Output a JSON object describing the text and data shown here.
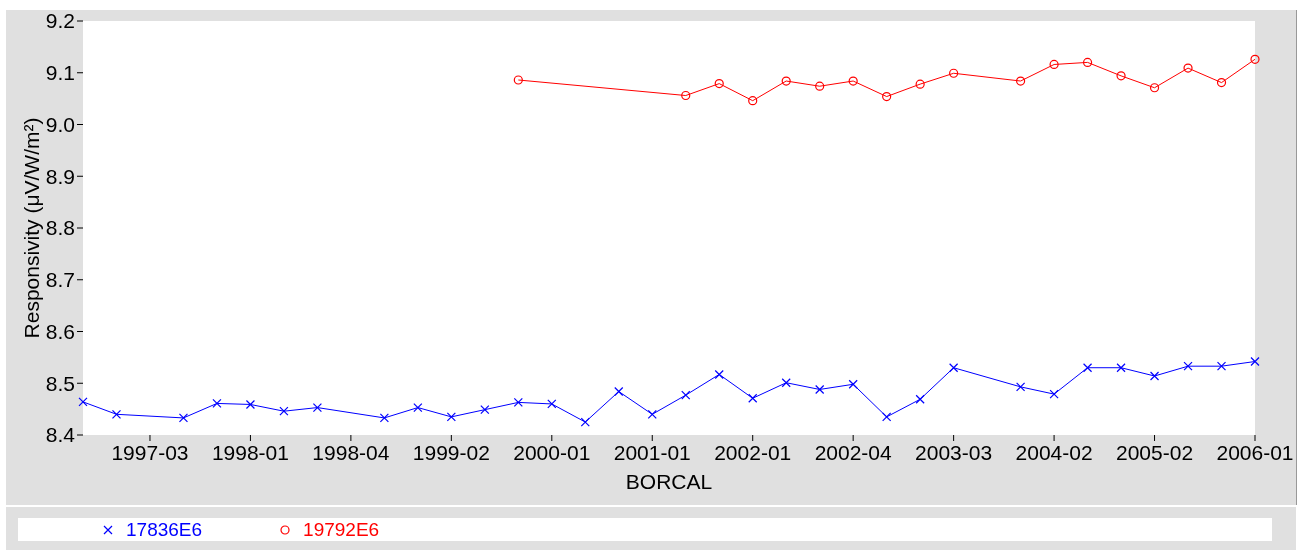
{
  "chart_data": {
    "type": "line",
    "xlabel": "BORCAL",
    "ylabel": "Responsivity (μV/W/m²)",
    "categories": [
      null,
      null,
      "1997-03",
      null,
      null,
      "1998-01",
      null,
      null,
      "1998-04",
      null,
      null,
      "1999-02",
      null,
      null,
      "2000-01",
      null,
      null,
      "2001-01",
      null,
      null,
      "2002-01",
      null,
      null,
      "2002-04",
      null,
      null,
      "2003-03",
      null,
      null,
      "2004-02",
      null,
      null,
      "2005-02",
      null,
      null,
      "2006-01"
    ],
    "series": [
      {
        "name": "17836E6",
        "color": "#0000ff",
        "marker": "cross",
        "values": [
          8.464,
          8.44,
          null,
          8.433,
          8.461,
          8.459,
          8.446,
          8.453,
          null,
          8.433,
          8.453,
          8.435,
          8.449,
          8.463,
          8.46,
          8.425,
          8.484,
          8.44,
          8.477,
          8.517,
          8.471,
          8.501,
          8.488,
          8.498,
          8.435,
          8.469,
          8.53,
          null,
          8.493,
          8.479,
          8.53,
          8.53,
          8.514,
          8.533,
          8.533,
          8.542
        ]
      },
      {
        "name": "19792E6",
        "color": "#ff0000",
        "marker": "circle",
        "values": [
          null,
          null,
          null,
          null,
          null,
          null,
          null,
          null,
          null,
          null,
          null,
          null,
          null,
          9.086,
          null,
          null,
          null,
          null,
          9.056,
          9.079,
          9.046,
          9.084,
          9.074,
          9.084,
          9.054,
          9.078,
          9.099,
          null,
          9.084,
          9.116,
          9.12,
          9.094,
          9.071,
          9.109,
          9.081,
          9.126
        ]
      }
    ],
    "ylim": [
      8.4,
      9.2
    ],
    "yticks": [
      8.4,
      8.5,
      8.6,
      8.7,
      8.8,
      8.9,
      {
        "value": 9,
        "label": "9.0"
      },
      9.1,
      9.2
    ],
    "legend": "bottom",
    "line_style": "solid"
  }
}
